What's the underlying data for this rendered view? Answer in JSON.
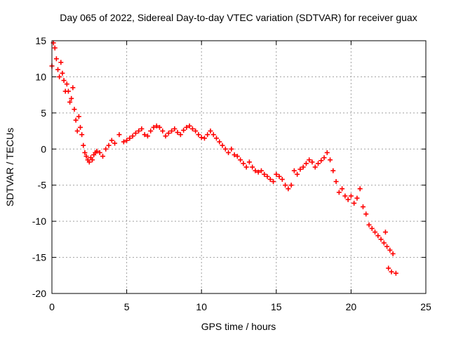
{
  "chart_data": {
    "type": "scatter",
    "title": "Day 065 of 2022, Sidereal Day-to-day VTEC variation (SDTVAR) for receiver guax",
    "xlabel": "GPS time / hours",
    "ylabel": "SDTVAR / TECUs",
    "xlim": [
      0,
      25
    ],
    "ylim": [
      -20,
      15
    ],
    "xticks": [
      0,
      5,
      10,
      15,
      20,
      25
    ],
    "yticks": [
      -20,
      -15,
      -10,
      -5,
      0,
      5,
      10,
      15
    ],
    "xtick_labels": [
      "0",
      "5",
      "10",
      "15",
      "20",
      "25"
    ],
    "ytick_labels": [
      "-20",
      "-15",
      "-10",
      "-5",
      "0",
      "5",
      "10",
      "15"
    ],
    "grid": true,
    "marker": "plus",
    "color": "#ff0000",
    "series": [
      {
        "name": "SDTVAR",
        "x": [
          0.0,
          0.1,
          0.2,
          0.3,
          0.4,
          0.5,
          0.6,
          0.7,
          0.8,
          0.9,
          1.0,
          1.1,
          1.2,
          1.3,
          1.4,
          1.5,
          1.6,
          1.7,
          1.8,
          1.9,
          2.0,
          2.1,
          2.2,
          2.3,
          2.4,
          2.5,
          2.6,
          2.7,
          2.8,
          2.9,
          3.0,
          3.2,
          3.4,
          3.6,
          3.8,
          4.0,
          4.2,
          4.5,
          4.8,
          5.0,
          5.2,
          5.4,
          5.6,
          5.8,
          6.0,
          6.2,
          6.4,
          6.6,
          6.8,
          7.0,
          7.2,
          7.4,
          7.6,
          7.8,
          8.0,
          8.2,
          8.4,
          8.6,
          8.8,
          9.0,
          9.2,
          9.4,
          9.6,
          9.8,
          10.0,
          10.2,
          10.4,
          10.6,
          10.8,
          11.0,
          11.2,
          11.4,
          11.6,
          11.8,
          12.0,
          12.2,
          12.4,
          12.6,
          12.8,
          13.0,
          13.2,
          13.4,
          13.6,
          13.8,
          14.0,
          14.2,
          14.4,
          14.6,
          14.8,
          15.0,
          15.2,
          15.4,
          15.6,
          15.8,
          16.0,
          16.2,
          16.4,
          16.6,
          16.8,
          17.0,
          17.2,
          17.4,
          17.6,
          17.8,
          18.0,
          18.2,
          18.4,
          18.6,
          18.8,
          19.0,
          19.2,
          19.4,
          19.6,
          19.8,
          20.0,
          20.2,
          20.4,
          20.6,
          20.8,
          21.0,
          21.2,
          21.4,
          21.6,
          21.8,
          22.0,
          22.2,
          22.4,
          22.6,
          22.8,
          23.0,
          22.3,
          22.5,
          22.7
        ],
        "y": [
          11.5,
          14.7,
          14.0,
          12.5,
          11.0,
          10.0,
          12.0,
          10.5,
          9.5,
          8.0,
          9.0,
          8.0,
          6.5,
          7.0,
          8.5,
          5.5,
          4.0,
          2.5,
          4.5,
          3.0,
          2.0,
          0.5,
          -0.5,
          -1.0,
          -1.5,
          -1.8,
          -1.2,
          -1.5,
          -0.8,
          -0.5,
          -0.3,
          -0.5,
          -1.0,
          0.0,
          0.5,
          1.2,
          0.8,
          2.0,
          1.0,
          1.2,
          1.5,
          1.8,
          2.2,
          2.5,
          2.8,
          2.0,
          1.8,
          2.5,
          3.0,
          3.2,
          3.0,
          2.5,
          1.8,
          2.2,
          2.5,
          2.8,
          2.3,
          2.0,
          2.6,
          3.0,
          3.2,
          2.8,
          2.5,
          2.0,
          1.6,
          1.5,
          2.0,
          2.5,
          2.0,
          1.5,
          1.0,
          0.5,
          0.0,
          -0.5,
          0.0,
          -0.8,
          -1.0,
          -1.5,
          -2.0,
          -2.5,
          -1.8,
          -2.5,
          -3.0,
          -3.2,
          -3.0,
          -3.5,
          -3.8,
          -4.2,
          -4.5,
          -3.5,
          -3.8,
          -4.2,
          -5.0,
          -5.5,
          -5.0,
          -3.0,
          -3.5,
          -2.8,
          -2.5,
          -2.0,
          -1.5,
          -1.8,
          -2.5,
          -2.0,
          -1.6,
          -1.2,
          -0.5,
          -1.5,
          -3.0,
          -4.5,
          -6.0,
          -5.5,
          -6.5,
          -7.0,
          -6.5,
          -7.5,
          -6.8,
          -5.5,
          -8.0,
          -9.0,
          -10.5,
          -11.0,
          -11.5,
          -12.0,
          -12.5,
          -13.0,
          -13.5,
          -14.0,
          -14.5,
          -17.2,
          -11.5,
          -16.5,
          -17.0
        ]
      }
    ]
  }
}
